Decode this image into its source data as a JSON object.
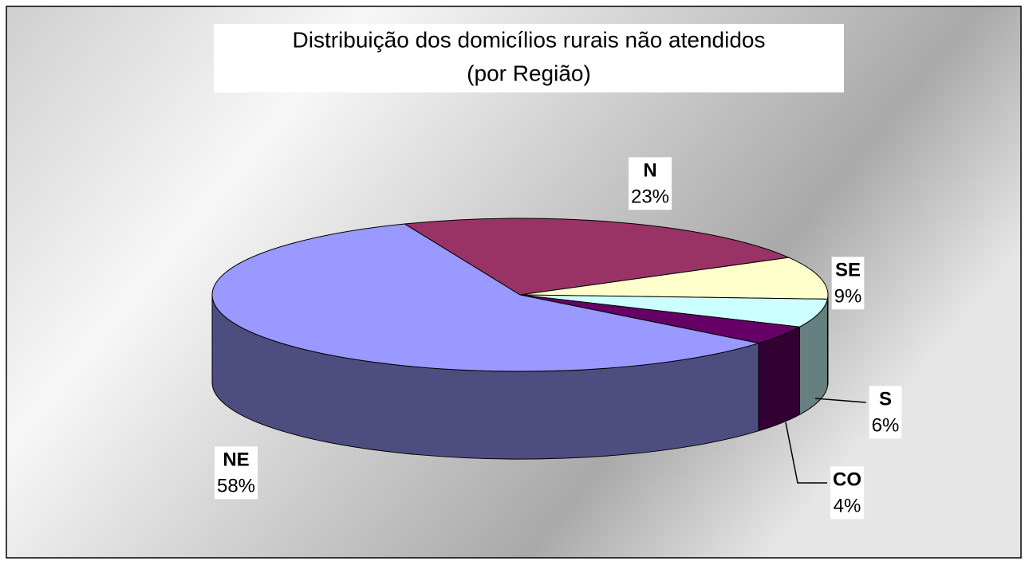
{
  "chart_data": {
    "type": "pie3d",
    "title": "Distribuição dos domicílios rurais não atendidos",
    "subtitle": "(por Região)",
    "categories": [
      "N",
      "SE",
      "S",
      "CO",
      "NE"
    ],
    "values": [
      23,
      9,
      6,
      4,
      58
    ],
    "value_labels": [
      "23%",
      "9%",
      "6%",
      "4%",
      "58%"
    ],
    "colors": [
      "#993366",
      "#ffffcc",
      "#ccffff",
      "#660066",
      "#9999ff"
    ]
  }
}
